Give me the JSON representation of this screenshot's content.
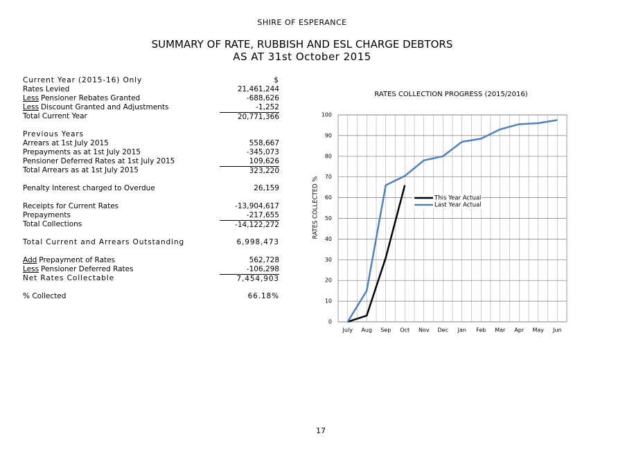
{
  "header": {
    "org": "SHIRE OF ESPERANCE",
    "title": "SUMMARY OF RATE, RUBBISH AND ESL CHARGE DEBTORS",
    "subtitle": "AS AT 31st October 2015"
  },
  "table": {
    "sections": [
      {
        "rows": [
          {
            "label": "Current Year (2015-16) Only",
            "value": "$",
            "spaced": true
          },
          {
            "label": "Rates Levied",
            "value": "21,461,244"
          },
          {
            "prefix": "Less",
            "label": "Pensioner Rebates Granted",
            "value": "-688,626"
          },
          {
            "prefix": "Less",
            "label": "Discount Granted and Adjustments",
            "value": "-1,252"
          },
          {
            "label": "Total Current Year",
            "value": "20,771,366",
            "total": true
          }
        ]
      },
      {
        "rows": [
          {
            "label": "Previous Years",
            "spaced": true
          },
          {
            "label": "Arrears at 1st July 2015",
            "value": "558,667"
          },
          {
            "label": "Prepayments as at 1st July 2015",
            "value": "-345,073"
          },
          {
            "label": "Pensioner Deferred Rates at 1st July 2015",
            "value": "109,626"
          },
          {
            "label": "Total Arrears as at 1st July 2015",
            "value": "323,220",
            "total": true
          }
        ]
      },
      {
        "rows": [
          {
            "label": "Penalty Interest charged to Overdue",
            "value": "26,159"
          }
        ]
      },
      {
        "rows": [
          {
            "label": "Receipts for Current Rates",
            "value": "-13,904,617"
          },
          {
            "label": "Prepayments",
            "value": "-217,655"
          },
          {
            "label": "Total Collections",
            "value": "-14,122,272",
            "total": true
          }
        ]
      },
      {
        "rows": [
          {
            "label": "Total Current and Arrears Outstanding",
            "value": "6,998,473",
            "spaced": true
          }
        ]
      },
      {
        "rows": [
          {
            "prefix": "Add",
            "label": "Prepayment of Rates",
            "value": "562,728"
          },
          {
            "prefix": "Less",
            "label": "Pensioner Deferred Rates",
            "value": "-106,298"
          },
          {
            "label": "Net Rates Collectable",
            "value": "7,454,903",
            "total": true,
            "spaced": true
          }
        ]
      },
      {
        "rows": [
          {
            "label": "% Collected",
            "value": "66.18%",
            "spaced_value": true
          }
        ]
      }
    ]
  },
  "chart_data": {
    "type": "line",
    "title": "RATES COLLECTION PROGRESS (2015/2016)",
    "y_label": "RATES COLLECTED %",
    "categories": [
      "July",
      "Aug",
      "Sep",
      "Oct",
      "Nov",
      "Dec",
      "Jan",
      "Feb",
      "Mar",
      "Apr",
      "May",
      "Jun"
    ],
    "series": [
      {
        "name": "This Year Actual",
        "color": "#000000",
        "values": [
          0,
          3,
          31,
          66,
          null,
          null,
          null,
          null,
          null,
          null,
          null,
          null
        ]
      },
      {
        "name": "Last Year Actual",
        "color": "#4f81bd",
        "values": [
          0,
          15,
          66,
          70.5,
          78,
          80,
          87,
          88.5,
          93,
          95.5,
          96,
          97.5
        ]
      }
    ],
    "ylim": [
      0,
      100
    ],
    "yticks": [
      0,
      10,
      20,
      30,
      40,
      50,
      60,
      70,
      80,
      90,
      100
    ],
    "grid": true
  },
  "page_number": "17"
}
